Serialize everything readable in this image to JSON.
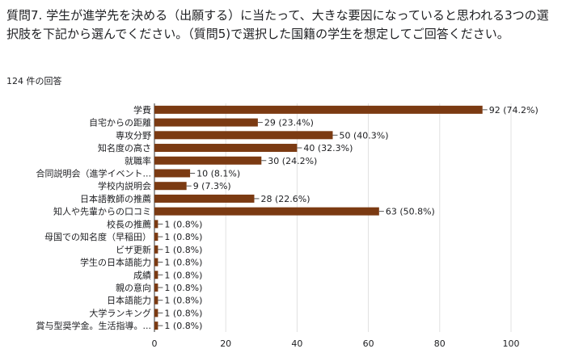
{
  "question": {
    "text": "質問7. 学生が進学先を決める（出願する）に当たって、大きな要因になっていると思われる3つの選択肢を下記から選んでください。（質問5)で選択した国籍の学生を想定してご回答ください。"
  },
  "response_count": "124 件の回答",
  "colors": {
    "bar": "#7b3a12",
    "grid": "#e0e0e0"
  },
  "chart_data": {
    "type": "bar",
    "orientation": "horizontal",
    "categories": [
      "学費",
      "自宅からの距離",
      "専攻分野",
      "知名度の高さ",
      "就職率",
      "合同説明会（進学イベント...",
      "学校内説明会",
      "日本語教師の推薦",
      "知人や先輩からの口コミ",
      "校長の推薦",
      "母国での知名度（早稲田）",
      "ビザ更新",
      "学生の日本語能力",
      "成績",
      "親の意向",
      "日本語能力",
      "大学ランキング",
      "賞与型奨学金。生活指導。..."
    ],
    "values": [
      92,
      29,
      50,
      40,
      30,
      10,
      9,
      28,
      63,
      1,
      1,
      1,
      1,
      1,
      1,
      1,
      1,
      1
    ],
    "value_labels": [
      "92 (74.2%)",
      "29 (23.4%)",
      "50 (40.3%)",
      "40 (32.3%)",
      "30 (24.2%)",
      "10 (8.1%)",
      "9 (7.3%)",
      "28 (22.6%)",
      "63 (50.8%)",
      "1 (0.8%)",
      "1 (0.8%)",
      "1 (0.8%)",
      "1 (0.8%)",
      "1 (0.8%)",
      "1 (0.8%)",
      "1 (0.8%)",
      "1 (0.8%)",
      "1 (0.8%)"
    ],
    "xlim": [
      0,
      100
    ],
    "xticks": [
      0,
      20,
      40,
      60,
      80,
      100
    ],
    "grid": true,
    "title": "",
    "xlabel": "",
    "ylabel": ""
  }
}
